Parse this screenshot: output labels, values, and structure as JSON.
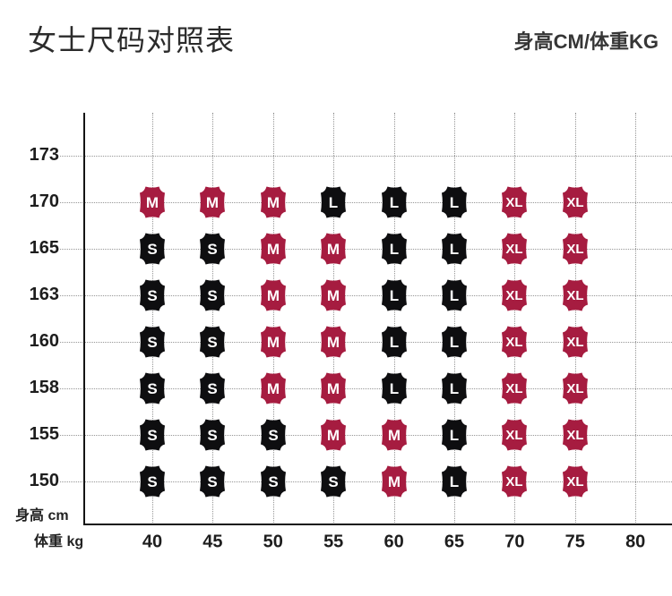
{
  "header": {
    "title": "女士尺码对照表",
    "unit_note": "身高CM/体重KG"
  },
  "colors": {
    "red": "#A61C40",
    "black": "#0E0E10",
    "badge_text": "#FFFFFF",
    "axis": "#141414",
    "grid": "#969696",
    "text": "#1D1D1D"
  },
  "chart_data": {
    "type": "scatter",
    "title": "女士尺码对照表",
    "xlabel": "体重 kg",
    "ylabel": "身高 cm",
    "x_unit": "kg",
    "y_unit": "cm",
    "grid": true,
    "x_ticks": [
      40,
      45,
      50,
      55,
      60,
      65,
      70,
      75,
      80
    ],
    "y_ticks": [
      173,
      170,
      165,
      163,
      160,
      158,
      155,
      150
    ],
    "badge_weights": [
      40,
      45,
      50,
      55,
      60,
      65,
      70,
      75
    ],
    "size_colors": {
      "S": "black",
      "M": "red",
      "L": "black",
      "XL": "red"
    },
    "rows": [
      {
        "height": 170,
        "sizes": [
          "M",
          "M",
          "M",
          "L",
          "L",
          "L",
          "XL",
          "XL"
        ]
      },
      {
        "height": 165,
        "sizes": [
          "S",
          "S",
          "M",
          "M",
          "L",
          "L",
          "XL",
          "XL"
        ]
      },
      {
        "height": 163,
        "sizes": [
          "S",
          "S",
          "M",
          "M",
          "L",
          "L",
          "XL",
          "XL"
        ]
      },
      {
        "height": 160,
        "sizes": [
          "S",
          "S",
          "M",
          "M",
          "L",
          "L",
          "XL",
          "XL"
        ]
      },
      {
        "height": 158,
        "sizes": [
          "S",
          "S",
          "M",
          "M",
          "L",
          "L",
          "XL",
          "XL"
        ]
      },
      {
        "height": 155,
        "sizes": [
          "S",
          "S",
          "S",
          "M",
          "M",
          "L",
          "XL",
          "XL"
        ]
      },
      {
        "height": 150,
        "sizes": [
          "S",
          "S",
          "S",
          "S",
          "M",
          "L",
          "XL",
          "XL"
        ]
      }
    ]
  }
}
